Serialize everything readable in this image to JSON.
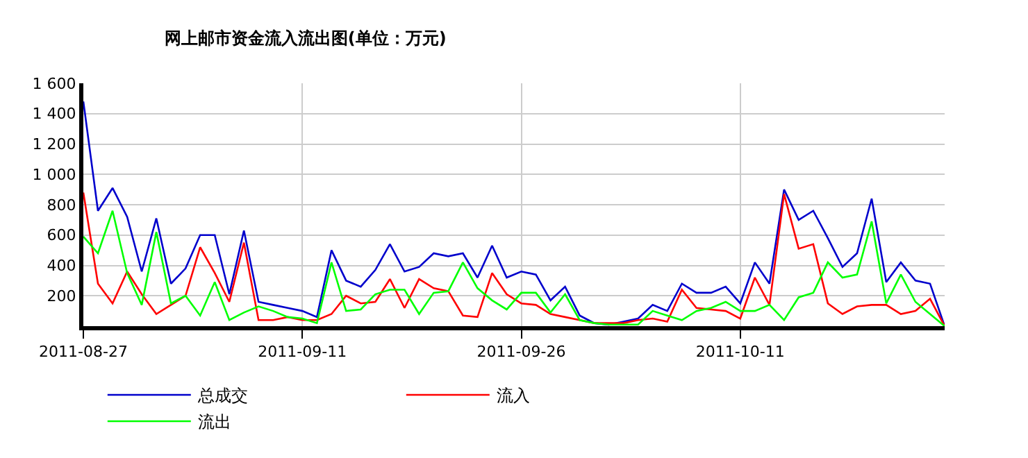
{
  "chart_data": {
    "type": "line",
    "title": "网上邮市资金流入流出图(单位：万元)",
    "x": [
      "2011-08-27",
      "2011-08-28",
      "2011-08-29",
      "2011-08-30",
      "2011-08-31",
      "2011-09-01",
      "2011-09-02",
      "2011-09-03",
      "2011-09-04",
      "2011-09-05",
      "2011-09-06",
      "2011-09-07",
      "2011-09-08",
      "2011-09-09",
      "2011-09-10",
      "2011-09-11",
      "2011-09-12",
      "2011-09-13",
      "2011-09-14",
      "2011-09-15",
      "2011-09-16",
      "2011-09-17",
      "2011-09-18",
      "2011-09-19",
      "2011-09-20",
      "2011-09-21",
      "2011-09-22",
      "2011-09-23",
      "2011-09-24",
      "2011-09-25",
      "2011-09-26",
      "2011-09-27",
      "2011-09-28",
      "2011-09-29",
      "2011-09-30",
      "2011-10-01",
      "2011-10-02",
      "2011-10-03",
      "2011-10-04",
      "2011-10-05",
      "2011-10-06",
      "2011-10-07",
      "2011-10-08",
      "2011-10-09",
      "2011-10-10",
      "2011-10-11",
      "2011-10-12",
      "2011-10-13",
      "2011-10-14",
      "2011-10-15",
      "2011-10-16",
      "2011-10-17",
      "2011-10-18",
      "2011-10-19",
      "2011-10-20",
      "2011-10-21",
      "2011-10-22",
      "2011-10-23",
      "2011-10-24",
      "2011-10-25"
    ],
    "series": [
      {
        "name": "总成交",
        "color": "#0000cc",
        "values": [
          1480,
          760,
          910,
          720,
          360,
          710,
          280,
          380,
          600,
          600,
          210,
          630,
          160,
          140,
          120,
          100,
          60,
          500,
          300,
          260,
          370,
          540,
          360,
          390,
          480,
          460,
          480,
          320,
          530,
          320,
          360,
          340,
          170,
          260,
          70,
          20,
          10,
          30,
          50,
          140,
          100,
          280,
          220,
          220,
          260,
          150,
          420,
          280,
          900,
          700,
          760,
          580,
          390,
          480,
          840,
          290,
          420,
          300,
          280,
          0
        ]
      },
      {
        "name": "流入",
        "color": "#ff0000",
        "values": [
          880,
          280,
          150,
          360,
          210,
          80,
          140,
          200,
          520,
          350,
          160,
          550,
          40,
          40,
          60,
          40,
          40,
          80,
          200,
          150,
          160,
          310,
          120,
          310,
          250,
          230,
          70,
          60,
          350,
          210,
          150,
          140,
          80,
          60,
          40,
          20,
          20,
          20,
          40,
          50,
          30,
          240,
          120,
          110,
          100,
          50,
          320,
          140,
          870,
          510,
          540,
          150,
          80,
          130,
          140,
          140,
          80,
          100,
          180,
          0
        ]
      },
      {
        "name": "流出",
        "color": "#00ff00",
        "values": [
          590,
          480,
          760,
          350,
          140,
          620,
          150,
          200,
          70,
          290,
          40,
          90,
          130,
          100,
          60,
          50,
          20,
          420,
          100,
          110,
          210,
          240,
          240,
          80,
          220,
          230,
          420,
          250,
          170,
          110,
          220,
          220,
          90,
          210,
          40,
          20,
          10,
          10,
          10,
          100,
          70,
          40,
          100,
          120,
          160,
          100,
          100,
          140,
          40,
          190,
          220,
          420,
          320,
          340,
          690,
          150,
          340,
          160,
          80,
          0
        ]
      }
    ],
    "xlim": [
      "2011-08-27",
      "2011-10-25"
    ],
    "xticks": [
      {
        "value": "2011-08-27",
        "label": "2011-08-27"
      },
      {
        "value": "2011-09-11",
        "label": "2011-09-11"
      },
      {
        "value": "2011-09-26",
        "label": "2011-09-26"
      },
      {
        "value": "2011-10-11",
        "label": "2011-10-11"
      }
    ],
    "ylim": [
      0,
      1600
    ],
    "yticks": [
      200,
      400,
      600,
      800,
      {
        "value": 1000,
        "label": "1 000"
      },
      {
        "value": 1200,
        "label": "1 200"
      },
      {
        "value": 1400,
        "label": "1 400"
      },
      {
        "value": 1600,
        "label": "1 600"
      }
    ],
    "grid": true,
    "legend": "bottom",
    "marker": "none",
    "line_style": "solid"
  }
}
